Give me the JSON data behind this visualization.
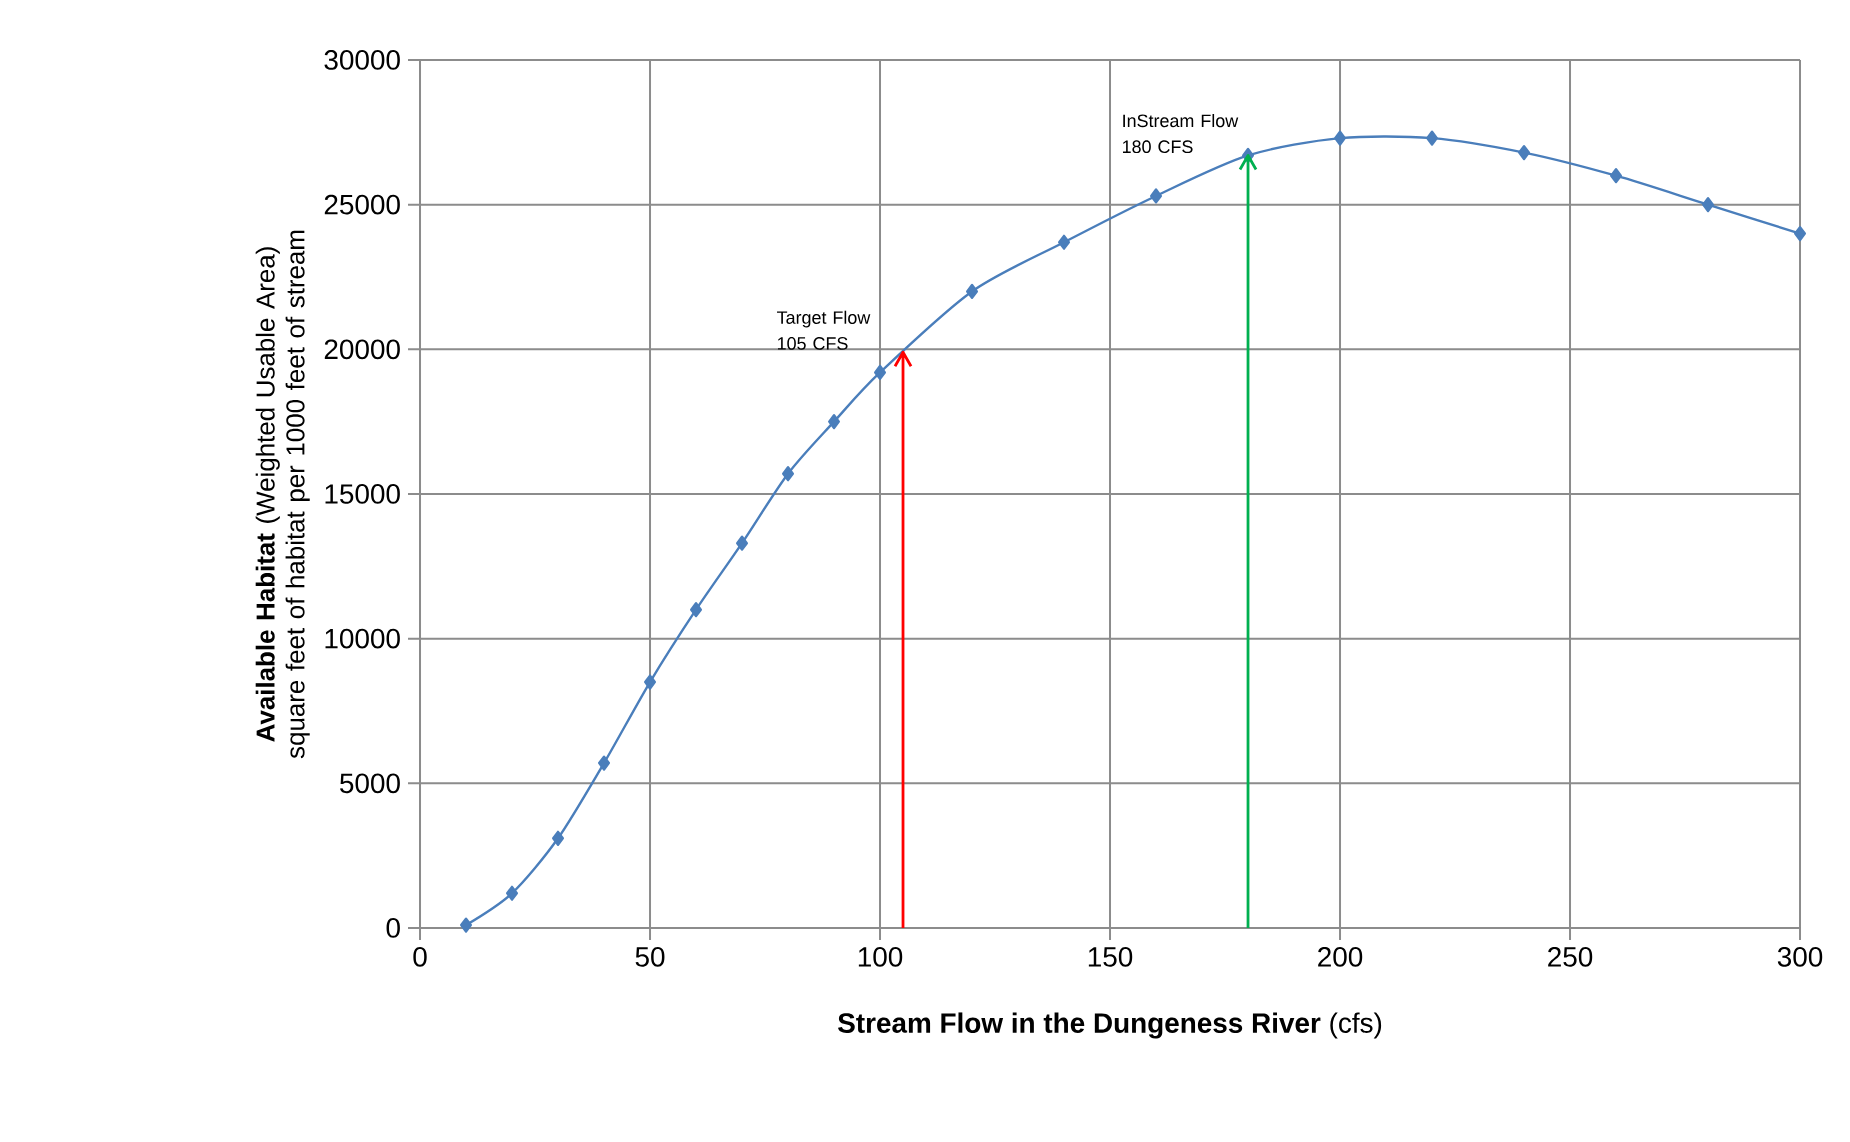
{
  "chart_data": {
    "type": "line",
    "xlabel": "**Stream Flow in the Dungeness River** (cfs)",
    "ylabel": "**Available Habitat** (Weighted Usable Area) square feet of habitat per 1000 feet of stream",
    "x": [
      10,
      20,
      30,
      40,
      50,
      60,
      70,
      80,
      90,
      100,
      120,
      140,
      160,
      180,
      200,
      220,
      240,
      260,
      280,
      300
    ],
    "series": [
      {
        "color": "#4a7ebb",
        "values": [
          100,
          1200,
          3100,
          5700,
          8500,
          11000,
          13300,
          15700,
          17500,
          19200,
          22000,
          23700,
          25300,
          26700,
          27300,
          27300,
          26800,
          26000,
          25000,
          24000
        ]
      }
    ],
    "xlim": [
      0,
      300
    ],
    "xticks": [
      0,
      50,
      100,
      150,
      200,
      250,
      300
    ],
    "ylim": [
      0,
      30000
    ],
    "yticks": [
      0,
      5000,
      10000,
      15000,
      20000,
      25000,
      30000
    ],
    "grid": true,
    "marker": "diamond",
    "line_style": "solid",
    "ref_lines": [
      {
        "axis": "x",
        "value": 105,
        "label": "Target Flow 105 CFS",
        "color": "#ff0000"
      },
      {
        "axis": "x",
        "value": 180,
        "label": "InStream Flow 180 CFS",
        "color": "#00b050"
      }
    ]
  }
}
